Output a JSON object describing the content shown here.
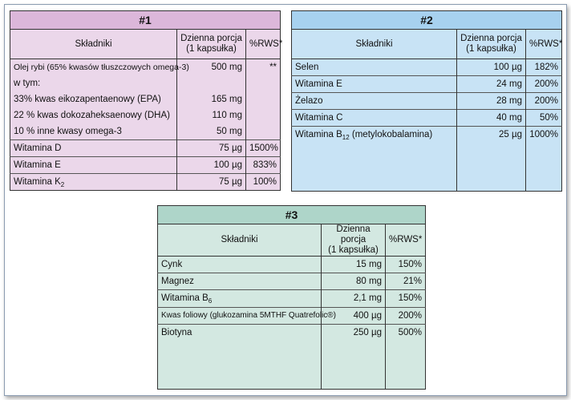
{
  "tables": [
    {
      "title": "#1",
      "headers": [
        "Składniki",
        "Dzienna porcja\n(1 kapsułka)",
        "%RWS*"
      ],
      "rows": [
        {
          "name": "Olej rybi (65% kwasów tłuszczowych omega-3)",
          "amount": "500 mg",
          "rws": "**"
        },
        {
          "name": "w tym:",
          "amount": "",
          "rws": ""
        },
        {
          "name": "33% kwas eikozapentaenowy (EPA)",
          "amount": "165 mg",
          "rws": ""
        },
        {
          "name": "22 % kwas dokozaheksaenowy (DHA)",
          "amount": "110 mg",
          "rws": ""
        },
        {
          "name": "10 % inne kwasy omega-3",
          "amount": "50 mg",
          "rws": ""
        },
        {
          "name": "Witamina D",
          "amount": "75 µg",
          "rws": "1500%"
        },
        {
          "name": "Witamina E",
          "amount": "100 µg",
          "rws": "833%"
        },
        {
          "name": "Witamina K",
          "sub": "2",
          "amount": "75 µg",
          "rws": "100%"
        }
      ]
    },
    {
      "title": "#2",
      "headers": [
        "Składniki",
        "Dzienna porcja\n(1 kapsułka)",
        "%RWS*"
      ],
      "rows": [
        {
          "name": "Selen",
          "amount": "100 µg",
          "rws": "182%"
        },
        {
          "name": "Witamina E",
          "amount": "24 mg",
          "rws": "200%"
        },
        {
          "name": "Żelazo",
          "amount": "28 mg",
          "rws": "200%"
        },
        {
          "name": "Witamina C",
          "amount": "40 mg",
          "rws": "50%"
        },
        {
          "name": "Witamina B",
          "sub": "12",
          "suffix": " (metylokobalamina)",
          "amount": "25 µg",
          "rws": "1000%"
        }
      ]
    },
    {
      "title": "#3",
      "headers": [
        "Składniki",
        "Dzienna porcja\n(1 kapsułka)",
        "%RWS*"
      ],
      "rows": [
        {
          "name": "Cynk",
          "amount": "15 mg",
          "rws": "150%"
        },
        {
          "name": "Magnez",
          "amount": "80 mg",
          "rws": "21%"
        },
        {
          "name": "Witamina B",
          "sub": "6",
          "amount": "2,1 mg",
          "rws": "150%"
        },
        {
          "name": "Kwas foliowy (glukozamina 5MTHF Quatrefolic®)",
          "amount": "400 µg",
          "rws": "200%"
        },
        {
          "name": "Biotyna",
          "amount": "250 µg",
          "rws": "500%"
        }
      ]
    }
  ]
}
